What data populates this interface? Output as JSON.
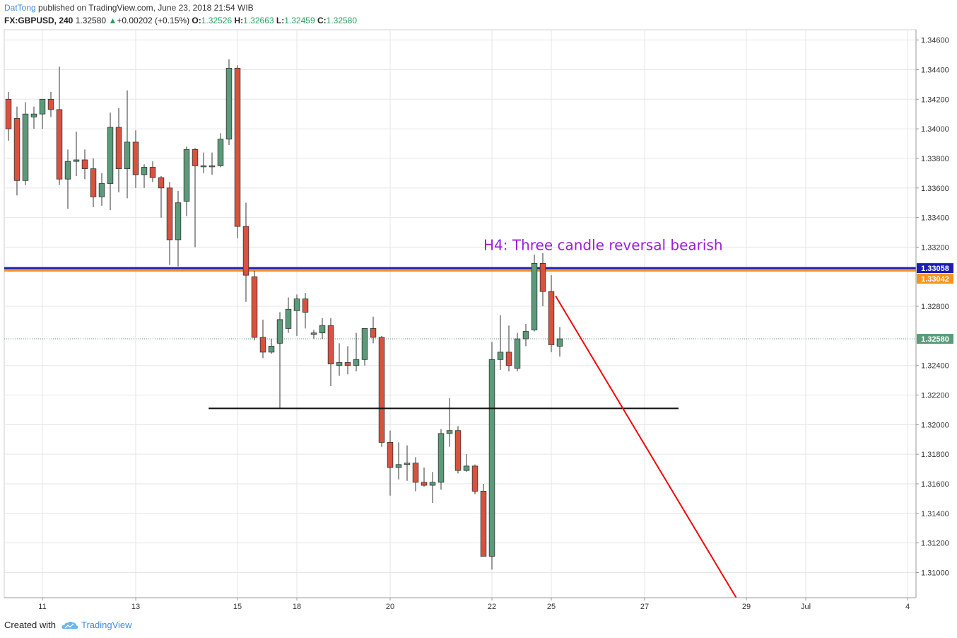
{
  "header": {
    "author": "DatTong",
    "published_text": " published on TradingView.com, June 23, 2018 21:54 WIB",
    "symbol": "FX:GBPUSD, 240",
    "last": "1.32580",
    "change_arrow": "▲",
    "change": "+0.00202 (+0.15%)",
    "o_label": "O:",
    "o_value": "1.32526",
    "h_label": "H:",
    "h_value": "1.32663",
    "l_label": "L:",
    "l_value": "1.32459",
    "c_label": "C:",
    "c_value": "1.32580"
  },
  "footer": {
    "created_with": "Created with",
    "brand": "TradingView"
  },
  "colors": {
    "bull": "#5b9b7a",
    "bear": "#d9523f",
    "blue_line": "#1d1db3",
    "orange_line": "#f7941d",
    "red_line": "#ff0000",
    "annotation": "#9b1ed8",
    "grid": "#e6e6e6",
    "last_price": "#5b9b7a"
  },
  "chart_data": {
    "type": "candlestick",
    "title": "",
    "ylim": [
      1.3083,
      1.3467
    ],
    "y_ticks": [
      1.31,
      1.312,
      1.314,
      1.316,
      1.318,
      1.32,
      1.322,
      1.324,
      1.3258,
      1.328,
      1.33042,
      1.33058,
      1.332,
      1.334,
      1.336,
      1.338,
      1.34,
      1.342,
      1.344,
      1.346
    ],
    "y_tick_labels": [
      "1.31000",
      "1.31200",
      "1.31400",
      "1.31600",
      "1.31800",
      "1.32000",
      "1.32200",
      "1.32400",
      "1.32800",
      "1.33200",
      "1.33400",
      "1.33600",
      "1.33800",
      "1.34000",
      "1.34200",
      "1.34400",
      "1.34600"
    ],
    "x_tick_labels": [
      "11",
      "13",
      "15",
      "18",
      "20",
      "22",
      "25",
      "27",
      "29",
      "Jul",
      "4"
    ],
    "x_tick_index": [
      4,
      15,
      27,
      34,
      45,
      57,
      64,
      75,
      87,
      94,
      106
    ],
    "index_range": [
      -0.5,
      107
    ],
    "candles": [
      {
        "o": 1.342,
        "h": 1.3425,
        "l": 1.3392,
        "c": 1.34
      },
      {
        "o": 1.3407,
        "h": 1.3415,
        "l": 1.3355,
        "c": 1.3365
      },
      {
        "o": 1.3365,
        "h": 1.3418,
        "l": 1.3362,
        "c": 1.341
      },
      {
        "o": 1.3408,
        "h": 1.3415,
        "l": 1.34,
        "c": 1.341
      },
      {
        "o": 1.341,
        "h": 1.342,
        "l": 1.34,
        "c": 1.342
      },
      {
        "o": 1.342,
        "h": 1.3425,
        "l": 1.3408,
        "c": 1.3413
      },
      {
        "o": 1.3413,
        "h": 1.3442,
        "l": 1.3362,
        "c": 1.3366
      },
      {
        "o": 1.3366,
        "h": 1.3386,
        "l": 1.3346,
        "c": 1.3378
      },
      {
        "o": 1.3378,
        "h": 1.3398,
        "l": 1.3368,
        "c": 1.3379
      },
      {
        "o": 1.3379,
        "h": 1.3386,
        "l": 1.3366,
        "c": 1.3373
      },
      {
        "o": 1.3373,
        "h": 1.338,
        "l": 1.3347,
        "c": 1.3354
      },
      {
        "o": 1.3354,
        "h": 1.337,
        "l": 1.3348,
        "c": 1.3363
      },
      {
        "o": 1.3363,
        "h": 1.3411,
        "l": 1.3345,
        "c": 1.3401
      },
      {
        "o": 1.3401,
        "h": 1.3414,
        "l": 1.3357,
        "c": 1.3373
      },
      {
        "o": 1.3373,
        "h": 1.3426,
        "l": 1.3353,
        "c": 1.3391
      },
      {
        "o": 1.3391,
        "h": 1.3399,
        "l": 1.336,
        "c": 1.3369
      },
      {
        "o": 1.3369,
        "h": 1.3376,
        "l": 1.336,
        "c": 1.3374
      },
      {
        "o": 1.3374,
        "h": 1.3378,
        "l": 1.3364,
        "c": 1.3367
      },
      {
        "o": 1.3367,
        "h": 1.3368,
        "l": 1.334,
        "c": 1.336
      },
      {
        "o": 1.336,
        "h": 1.3364,
        "l": 1.3308,
        "c": 1.3325
      },
      {
        "o": 1.3325,
        "h": 1.3358,
        "l": 1.3307,
        "c": 1.335
      },
      {
        "o": 1.3351,
        "h": 1.3388,
        "l": 1.3341,
        "c": 1.3386
      },
      {
        "o": 1.3386,
        "h": 1.3387,
        "l": 1.332,
        "c": 1.3375
      },
      {
        "o": 1.3375,
        "h": 1.3384,
        "l": 1.337,
        "c": 1.3375
      },
      {
        "o": 1.3375,
        "h": 1.3384,
        "l": 1.3369,
        "c": 1.3375
      },
      {
        "o": 1.3375,
        "h": 1.3397,
        "l": 1.3374,
        "c": 1.3393
      },
      {
        "o": 1.3393,
        "h": 1.3447,
        "l": 1.3389,
        "c": 1.3441
      },
      {
        "o": 1.3441,
        "h": 1.3443,
        "l": 1.3326,
        "c": 1.3334
      },
      {
        "o": 1.3334,
        "h": 1.335,
        "l": 1.3283,
        "c": 1.3301
      },
      {
        "o": 1.33,
        "h": 1.3304,
        "l": 1.3257,
        "c": 1.3259
      },
      {
        "o": 1.3259,
        "h": 1.3271,
        "l": 1.3245,
        "c": 1.3249
      },
      {
        "o": 1.3249,
        "h": 1.3258,
        "l": 1.3248,
        "c": 1.3253
      },
      {
        "o": 1.3255,
        "h": 1.3276,
        "l": 1.3211,
        "c": 1.3271
      },
      {
        "o": 1.3265,
        "h": 1.3286,
        "l": 1.3262,
        "c": 1.3278
      },
      {
        "o": 1.3277,
        "h": 1.3288,
        "l": 1.326,
        "c": 1.3285
      },
      {
        "o": 1.3285,
        "h": 1.3289,
        "l": 1.3265,
        "c": 1.3276
      },
      {
        "o": 1.3261,
        "h": 1.3264,
        "l": 1.3258,
        "c": 1.3262
      },
      {
        "o": 1.3262,
        "h": 1.3272,
        "l": 1.3258,
        "c": 1.3267
      },
      {
        "o": 1.3267,
        "h": 1.3272,
        "l": 1.3226,
        "c": 1.3241
      },
      {
        "o": 1.324,
        "h": 1.3255,
        "l": 1.3233,
        "c": 1.3242
      },
      {
        "o": 1.3242,
        "h": 1.3253,
        "l": 1.3234,
        "c": 1.324
      },
      {
        "o": 1.324,
        "h": 1.3262,
        "l": 1.3236,
        "c": 1.3244
      },
      {
        "o": 1.3244,
        "h": 1.3265,
        "l": 1.324,
        "c": 1.3265
      },
      {
        "o": 1.3265,
        "h": 1.3273,
        "l": 1.3255,
        "c": 1.3259
      },
      {
        "o": 1.3259,
        "h": 1.326,
        "l": 1.3185,
        "c": 1.3188
      },
      {
        "o": 1.3188,
        "h": 1.3196,
        "l": 1.3152,
        "c": 1.3171
      },
      {
        "o": 1.3171,
        "h": 1.3188,
        "l": 1.3163,
        "c": 1.3173
      },
      {
        "o": 1.3173,
        "h": 1.3186,
        "l": 1.3162,
        "c": 1.3174
      },
      {
        "o": 1.3174,
        "h": 1.3178,
        "l": 1.3155,
        "c": 1.3161
      },
      {
        "o": 1.3161,
        "h": 1.3171,
        "l": 1.3158,
        "c": 1.3159
      },
      {
        "o": 1.3159,
        "h": 1.3168,
        "l": 1.3147,
        "c": 1.3161
      },
      {
        "o": 1.3161,
        "h": 1.3197,
        "l": 1.3156,
        "c": 1.3194
      },
      {
        "o": 1.3194,
        "h": 1.3218,
        "l": 1.3185,
        "c": 1.3196
      },
      {
        "o": 1.3196,
        "h": 1.3199,
        "l": 1.3167,
        "c": 1.3169
      },
      {
        "o": 1.3169,
        "h": 1.318,
        "l": 1.3168,
        "c": 1.3172
      },
      {
        "o": 1.3172,
        "h": 1.3173,
        "l": 1.3153,
        "c": 1.3155
      },
      {
        "o": 1.3155,
        "h": 1.316,
        "l": 1.3111,
        "c": 1.3111
      },
      {
        "o": 1.3111,
        "h": 1.3256,
        "l": 1.3102,
        "c": 1.3244
      },
      {
        "o": 1.3244,
        "h": 1.3274,
        "l": 1.3237,
        "c": 1.3249
      },
      {
        "o": 1.3249,
        "h": 1.3267,
        "l": 1.3236,
        "c": 1.324
      },
      {
        "o": 1.3238,
        "h": 1.3262,
        "l": 1.3236,
        "c": 1.3258
      },
      {
        "o": 1.3258,
        "h": 1.3268,
        "l": 1.3253,
        "c": 1.3263
      },
      {
        "o": 1.3264,
        "h": 1.3315,
        "l": 1.3263,
        "c": 1.3309
      },
      {
        "o": 1.3309,
        "h": 1.3316,
        "l": 1.328,
        "c": 1.329
      },
      {
        "o": 1.329,
        "h": 1.3301,
        "l": 1.3249,
        "c": 1.3254
      },
      {
        "o": 1.3253,
        "h": 1.3266,
        "l": 1.3246,
        "c": 1.3258
      }
    ],
    "levels": [
      {
        "name": "1.33058",
        "value": 1.33058,
        "color": "#1d1db3"
      },
      {
        "name": "1.33042",
        "value": 1.33042,
        "color": "#f7941d"
      },
      {
        "name": "1.32580",
        "value": 1.3258,
        "color": "#5b9b7a"
      }
    ],
    "support_line": {
      "value": 1.3211,
      "x_from": 23.6,
      "x_to": 79.0
    },
    "trend_line": {
      "from": {
        "x": 64.5,
        "y": 1.3287
      },
      "to": {
        "x": 85.8,
        "y": 1.3083
      }
    },
    "annotation": {
      "text": "H4: Three candle reversal bearish",
      "x": 56.0,
      "y": 1.3318
    }
  }
}
